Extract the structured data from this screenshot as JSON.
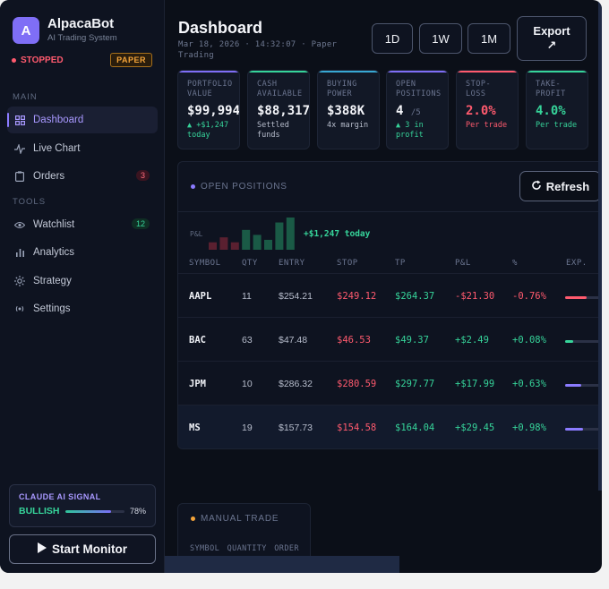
{
  "brand": {
    "initial": "A",
    "name": "AlpacaBot",
    "subtitle": "AI Trading System"
  },
  "status": {
    "state": "STOPPED",
    "mode": "PAPER"
  },
  "nav": {
    "main_label": "MAIN",
    "tools_label": "TOOLS",
    "main_items": [
      {
        "label": "Dashboard",
        "icon": "grid-icon",
        "active": true
      },
      {
        "label": "Live Chart",
        "icon": "pulse-icon"
      },
      {
        "label": "Orders",
        "icon": "clipboard-icon",
        "badge": "3"
      }
    ],
    "tool_items": [
      {
        "label": "Watchlist",
        "icon": "eye-icon",
        "badge": "12"
      },
      {
        "label": "Analytics",
        "icon": "bar-chart-icon"
      },
      {
        "label": "Strategy",
        "icon": "sun-icon"
      },
      {
        "label": "Settings",
        "icon": "radio-icon"
      }
    ]
  },
  "signal": {
    "title": "CLAUDE AI SIGNAL",
    "value": "BULLISH",
    "confidence": 78,
    "confidence_label": "78%"
  },
  "start_button": {
    "label": "Start Monitor"
  },
  "header": {
    "title": "Dashboard",
    "subtitle": "Mar 18, 2026 · 14:32:07 · Paper Trading",
    "timeframes": [
      "1D",
      "1W",
      "1M"
    ],
    "export_label": "Export",
    "export_icon": "↗"
  },
  "stats": [
    {
      "label": "PORTFOLIO\nVALUE",
      "value": "$99,994",
      "sub": "▲ +$1,247\ntoday",
      "accent": "#7f6ef6",
      "value_color": "#f5f6fa",
      "sub_color": "#36d49a"
    },
    {
      "label": "CASH\nAVAILABLE",
      "value": "$88,317",
      "sub": "Settled\nfunds",
      "accent": "#36d49a",
      "value_color": "#f5f6fa",
      "sub_color": "#b7bdcc"
    },
    {
      "label": "BUYING\nPOWER",
      "value": "$388K",
      "sub": "4x margin",
      "accent": "#38a8d4",
      "value_color": "#f5f6fa",
      "sub_color": "#b7bdcc"
    },
    {
      "label": "OPEN\nPOSITIONS",
      "value": "4",
      "value_suffix": "/5",
      "sub": "▲ 3 in\nprofit",
      "accent": "#7f6ef6",
      "value_color": "#f5f6fa",
      "sub_color": "#36d49a"
    },
    {
      "label": "STOP-\nLOSS",
      "value": "2.0%",
      "sub": "Per trade",
      "accent": "#ff5a6e",
      "value_color": "#ff5a6e",
      "sub_color": "#ff5a6e"
    },
    {
      "label": "TAKE-\nPROFIT",
      "value": "4.0%",
      "sub": "Per trade",
      "accent": "#36d49a",
      "value_color": "#36d49a",
      "sub_color": "#36d49a"
    }
  ],
  "positions": {
    "title": "OPEN POSITIONS",
    "refresh_label": "Refresh",
    "spark_label": "P&L",
    "spark_value": "+$1,247 today",
    "spark_bars": [
      {
        "value": 3,
        "color": "#5a2030"
      },
      {
        "value": 5,
        "color": "#5a2030"
      },
      {
        "value": 3,
        "color": "#5a2030"
      },
      {
        "value": 8,
        "color": "#1a5a46"
      },
      {
        "value": 6,
        "color": "#1a5a46"
      },
      {
        "value": 4,
        "color": "#1a5a46"
      },
      {
        "value": 11,
        "color": "#1a5a46"
      },
      {
        "value": 13,
        "color": "#1a5a46"
      }
    ],
    "columns": [
      "SYMBOL",
      "QTY",
      "ENTRY",
      "STOP",
      "TP",
      "P&L",
      "%",
      "EXP."
    ],
    "rows": [
      {
        "symbol": "AAPL",
        "qty": "11",
        "entry": "$254.21",
        "stop": "$249.12",
        "tp": "$264.37",
        "pnl": "-$21.30",
        "pct": "-0.76%",
        "exposure": 0.58,
        "exp_color": "#ff5a6e",
        "positive": false
      },
      {
        "symbol": "BAC",
        "qty": "63",
        "entry": "$47.48",
        "stop": "$46.53",
        "tp": "$49.37",
        "pnl": "+$2.49",
        "pct": "+0.08%",
        "exposure": 0.22,
        "exp_color": "#36d49a",
        "positive": true
      },
      {
        "symbol": "JPM",
        "qty": "10",
        "entry": "$286.32",
        "stop": "$280.59",
        "tp": "$297.77",
        "pnl": "+$17.99",
        "pct": "+0.63%",
        "exposure": 0.42,
        "exp_color": "#8b7bff",
        "positive": true
      },
      {
        "symbol": "MS",
        "qty": "19",
        "entry": "$157.73",
        "stop": "$154.58",
        "tp": "$164.04",
        "pnl": "+$29.45",
        "pct": "+0.98%",
        "exposure": 0.48,
        "exp_color": "#8b7bff",
        "positive": true
      }
    ]
  },
  "manual": {
    "title": "MANUAL TRADE",
    "columns": "SYMBOL QUANTITY ORDER"
  }
}
